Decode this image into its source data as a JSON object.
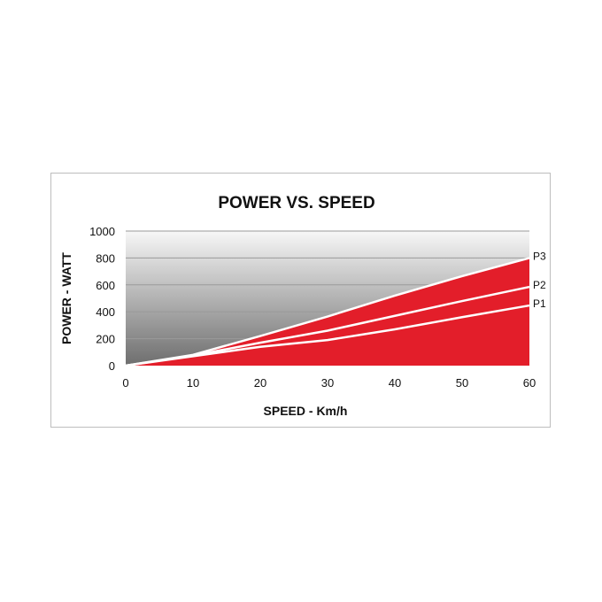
{
  "chart_data": {
    "type": "area",
    "title": "POWER VS. SPEED",
    "xlabel": "SPEED - Km/h",
    "ylabel": "POWER - WATT",
    "xlim": [
      0,
      60
    ],
    "ylim": [
      0,
      1000
    ],
    "x_ticks": [
      "0",
      "10",
      "20",
      "30",
      "40",
      "50",
      "60"
    ],
    "y_ticks": [
      "0",
      "200",
      "400",
      "600",
      "800",
      "1000"
    ],
    "grid": true,
    "x": [
      0,
      10,
      20,
      30,
      40,
      50,
      60
    ],
    "series": [
      {
        "name": "P3",
        "values": [
          0,
          80,
          220,
          365,
          520,
          665,
          800
        ]
      },
      {
        "name": "P2",
        "values": [
          0,
          75,
          170,
          260,
          370,
          480,
          585
        ]
      },
      {
        "name": "P1",
        "values": [
          0,
          70,
          140,
          190,
          270,
          360,
          447
        ]
      }
    ],
    "colors": {
      "fill": "#e31e2a",
      "line": "#ffffff",
      "background_top": "#f7f7f7",
      "background_bottom": "#6e6e6e",
      "grid": "#9a9a9a"
    }
  }
}
